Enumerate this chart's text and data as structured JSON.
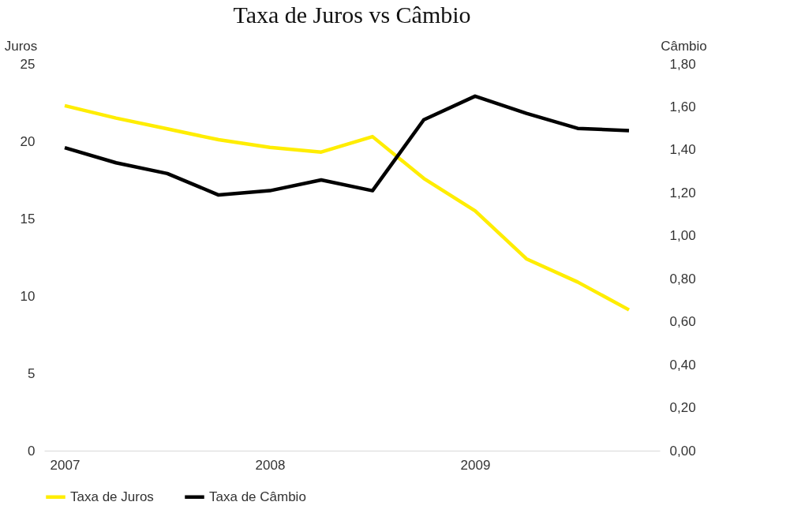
{
  "chart_data": {
    "type": "line",
    "title": "Taxa de Juros vs Câmbio",
    "ylabel": "Juros",
    "y2label": "Câmbio",
    "x": [
      2007,
      2007.25,
      2007.5,
      2007.75,
      2008,
      2008.25,
      2008.5,
      2008.75,
      2009,
      2009.25,
      2009.5,
      2009.75
    ],
    "series": [
      {
        "name": "Taxa de Juros",
        "color": "#ffed00",
        "values": [
          22.3,
          21.5,
          20.8,
          20.1,
          19.6,
          19.3,
          20.3,
          17.6,
          15.5,
          12.4,
          10.9,
          9.1
        ]
      },
      {
        "name": "Taxa de Câmbio",
        "color": "#000000",
        "axis": "y2",
        "values": [
          1.41,
          1.34,
          1.29,
          1.19,
          1.21,
          1.26,
          1.21,
          1.54,
          1.65,
          1.57,
          1.5,
          1.49
        ]
      }
    ],
    "xlim": [
      2006.9,
      2009.9
    ],
    "xticks": [
      2007,
      2008,
      2009
    ],
    "ylim": [
      0,
      25
    ],
    "yticks": [
      0,
      5,
      10,
      15,
      20,
      25
    ],
    "y2lim": [
      0,
      1.8
    ],
    "y2ticks": [
      {
        "value": 0,
        "label": "0,00"
      },
      {
        "value": 0.2,
        "label": "0,20"
      },
      {
        "value": 0.4,
        "label": "0,40"
      },
      {
        "value": 0.6,
        "label": "0,60"
      },
      {
        "value": 0.8,
        "label": "0,80"
      },
      {
        "value": 1,
        "label": "1,00"
      },
      {
        "value": 1.2,
        "label": "1,20"
      },
      {
        "value": 1.4,
        "label": "1,40"
      },
      {
        "value": 1.6,
        "label": "1,60"
      },
      {
        "value": 1.8,
        "label": "1,80"
      }
    ],
    "grid": false,
    "legend": "bottom",
    "marker": "none",
    "line_style": "solid"
  }
}
